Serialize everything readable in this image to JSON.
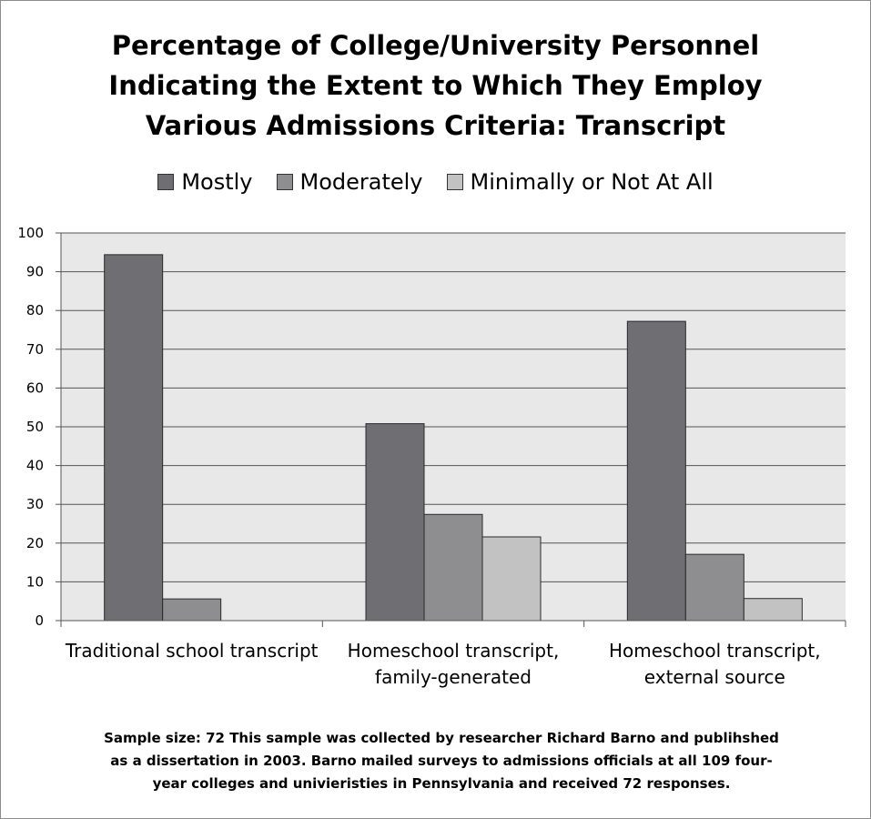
{
  "chart_data": {
    "type": "bar",
    "title": "Percentage of College/University Personnel Indicating the Extent to Which They Employ Various Admissions Criteria: Transcript",
    "title_lines": [
      "Percentage of College/University Personnel",
      "Indicating the Extent to Which They Employ",
      "Various Admissions Criteria: Transcript"
    ],
    "categories": [
      "Traditional school transcript",
      "Homeschool transcript, family-generated",
      "Homeschool transcript, external source"
    ],
    "category_lines": [
      [
        "Traditional school transcript"
      ],
      [
        "Homeschool transcript,",
        "family-generated"
      ],
      [
        "Homeschool transcript,",
        "external source"
      ]
    ],
    "series": [
      {
        "name": "Mostly",
        "color": "#6e6e73",
        "values": [
          94.4,
          50.8,
          77.2
        ]
      },
      {
        "name": "Moderately",
        "color": "#8e8e91",
        "values": [
          5.6,
          27.4,
          17.1
        ]
      },
      {
        "name": "Minimally or Not At All",
        "color": "#c2c2c2",
        "values": [
          0,
          21.6,
          5.7
        ]
      }
    ],
    "ylim": [
      0,
      100
    ],
    "yticks": [
      0,
      10,
      20,
      30,
      40,
      50,
      60,
      70,
      80,
      90,
      100
    ],
    "xlabel": "",
    "ylabel": "",
    "grid": true,
    "legend_position": "top",
    "colors": {
      "plot_background": "#e8e8e8",
      "gridline": "#555555"
    }
  },
  "note_lines": [
    "Sample size: 72 This sample was collected by researcher Richard Barno and publihshed",
    "as a dissertation in 2003. Barno mailed surveys to admissions officials at all 109 four-",
    "year colleges and univieristies in Pennsylvania and received 72 responses."
  ]
}
